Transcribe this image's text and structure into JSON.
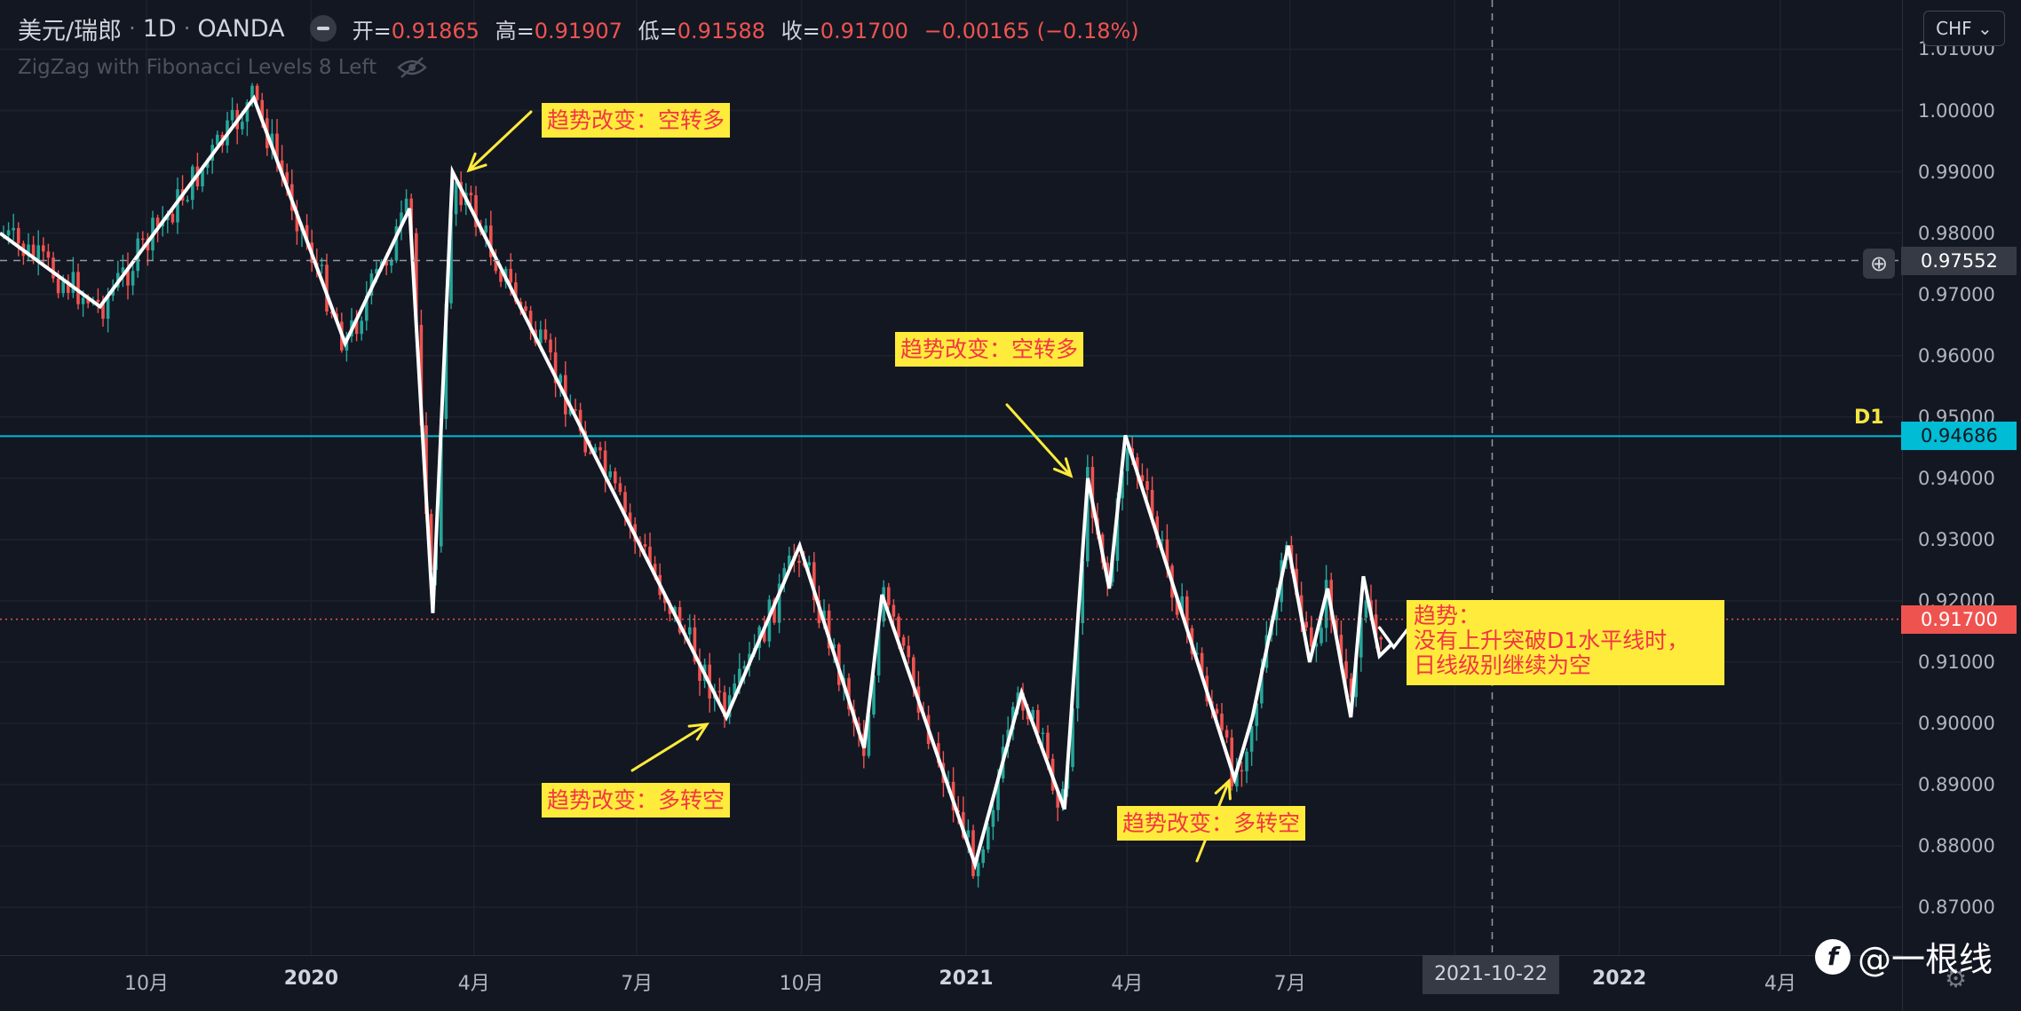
{
  "header": {
    "symbol": "美元/瑞郎",
    "timeframe": "1D",
    "broker": "OANDA",
    "open_label": "开=",
    "open": "0.91865",
    "high_label": "高=",
    "high": "0.91907",
    "low_label": "低=",
    "low": "0.91588",
    "close_label": "收=",
    "close": "0.91700",
    "change": "−0.00165 (−0.18%)",
    "indicator": "ZigZag with Fibonacci Levels 8 Left",
    "currency_button": "CHF"
  },
  "right_axis": {
    "ticks": [
      "1.01000",
      "1.00000",
      "0.99000",
      "0.98000",
      "0.97000",
      "0.96000",
      "0.95000",
      "0.94000",
      "0.93000",
      "0.92000",
      "0.91000",
      "0.90000",
      "0.89000",
      "0.88000",
      "0.87000"
    ],
    "tick_values": [
      1.01,
      1.0,
      0.99,
      0.98,
      0.97,
      0.96,
      0.95,
      0.94,
      0.93,
      0.92,
      0.91,
      0.9,
      0.89,
      0.88,
      0.87
    ],
    "crosshair_price": "0.97552",
    "d1_price": "0.94686",
    "last_price": "0.91700"
  },
  "bottom_axis": {
    "ticks": [
      "10月",
      "2020",
      "4月",
      "7月",
      "10月",
      "2021",
      "4月",
      "7月",
      "2022",
      "4月"
    ],
    "bold": [
      false,
      true,
      false,
      false,
      false,
      true,
      false,
      false,
      true,
      false
    ],
    "crosshair_date": "2021-10-22"
  },
  "horizontal_line_label": "D1",
  "annotations": [
    {
      "text": "趋势改变：空转多"
    },
    {
      "text": "趋势改变：空转多"
    },
    {
      "text": "趋势改变：多转空"
    },
    {
      "text": "趋势改变：多转空"
    }
  ],
  "note": {
    "line1": "趋势：",
    "line2": "没有上升突破D1水平线时，",
    "line3": "日线级别继续为空"
  },
  "watermark": "@一根线",
  "colors": {
    "background": "#131722",
    "bull": "#26a69a",
    "bear": "#ef5350",
    "zigzag": "#ffffff",
    "d1_line": "#00bcd4",
    "label_bg": "#ffeb3b",
    "label_text": "#f23645",
    "arrow": "#ffeb3b"
  },
  "chart_data": {
    "type": "candlestick",
    "symbol": "USDCHF",
    "zigzag": [
      {
        "date": "2019-08",
        "price": 0.98
      },
      {
        "date": "2019-09-05",
        "price": 0.968
      },
      {
        "date": "2019-11-30",
        "price": 1.002
      },
      {
        "date": "2020-01-20",
        "price": 0.962
      },
      {
        "date": "2020-02-25",
        "price": 0.984
      },
      {
        "date": "2020-03-09",
        "price": 0.918
      },
      {
        "date": "2020-03-20",
        "price": 0.99
      },
      {
        "date": "2020-08-20",
        "price": 0.901
      },
      {
        "date": "2020-09-30",
        "price": 0.929
      },
      {
        "date": "2020-11-05",
        "price": 0.896
      },
      {
        "date": "2020-11-15",
        "price": 0.921
      },
      {
        "date": "2021-01-06",
        "price": 0.877
      },
      {
        "date": "2021-02-01",
        "price": 0.905
      },
      {
        "date": "2021-02-25",
        "price": 0.886
      },
      {
        "date": "2021-03-10",
        "price": 0.94
      },
      {
        "date": "2021-03-22",
        "price": 0.922
      },
      {
        "date": "2021-03-31",
        "price": 0.947
      },
      {
        "date": "2021-05-31",
        "price": 0.891
      },
      {
        "date": "2021-06-10",
        "price": 0.901
      },
      {
        "date": "2021-06-30",
        "price": 0.929
      },
      {
        "date": "2021-07-12",
        "price": 0.91
      },
      {
        "date": "2021-07-22",
        "price": 0.922
      },
      {
        "date": "2021-08-04",
        "price": 0.901
      },
      {
        "date": "2021-08-11",
        "price": 0.924
      },
      {
        "date": "2021-08-20",
        "price": 0.911
      },
      {
        "date": "2021-08-27",
        "price": 0.913
      }
    ],
    "horizontal_lines": [
      {
        "name": "D1",
        "price": 0.94686
      }
    ],
    "crosshair": {
      "date": "2021-10-22",
      "price": 0.97552
    },
    "ylim": [
      0.865,
      1.015
    ]
  }
}
